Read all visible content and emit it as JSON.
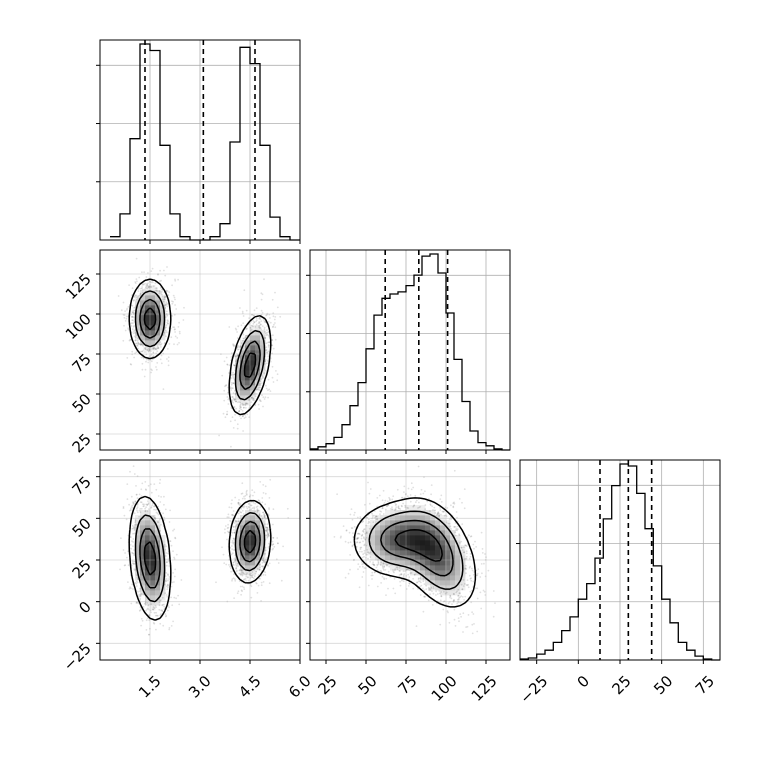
{
  "chart_data": {
    "type": "corner",
    "params": [
      {
        "range": [
          0,
          6
        ],
        "ticks": [
          1.5,
          3.0,
          4.5,
          6.0
        ],
        "tick_labels": [
          "1.5",
          "3.0",
          "4.5",
          "6.0"
        ]
      },
      {
        "range": [
          15,
          140
        ],
        "ticks": [
          25,
          50,
          75,
          100,
          125
        ],
        "tick_labels": [
          "25",
          "50",
          "75",
          "100",
          "125"
        ]
      },
      {
        "range": [
          -35,
          85
        ],
        "ticks": [
          -25,
          0,
          25,
          50,
          75
        ],
        "tick_labels": [
          "−25",
          "0",
          "25",
          "50",
          "75"
        ]
      }
    ],
    "histograms": [
      {
        "param": 0,
        "bin_edges": [
          0.3,
          0.6,
          0.9,
          1.2,
          1.5,
          1.8,
          2.1,
          2.4,
          2.7,
          3.0,
          3.3,
          3.6,
          3.9,
          4.2,
          4.5,
          4.8,
          5.1,
          5.4,
          5.7,
          6.0
        ],
        "counts": [
          1,
          8,
          31,
          60,
          58,
          29,
          8,
          1,
          0,
          0,
          1,
          5,
          30,
          59,
          54,
          29,
          7,
          1,
          0
        ],
        "quantiles": [
          1.35,
          3.1,
          4.65
        ]
      },
      {
        "param": 1,
        "bin_edges": [
          15,
          20,
          25,
          30,
          35,
          40,
          45,
          50,
          55,
          60,
          65,
          70,
          75,
          80,
          85,
          90,
          95,
          100,
          105,
          110,
          115,
          120,
          125,
          130,
          135,
          140
        ],
        "counts": [
          0.5,
          1.5,
          3,
          6,
          12,
          21,
          32,
          48,
          64,
          72,
          74,
          75,
          78,
          83,
          92,
          93,
          84,
          65,
          43,
          23,
          9,
          3.5,
          2,
          0.5,
          0
        ],
        "quantiles": [
          62,
          83,
          101
        ]
      },
      {
        "param": 2,
        "bin_edges": [
          -35,
          -30,
          -25,
          -20,
          -15,
          -10,
          -5,
          0,
          5,
          10,
          15,
          20,
          25,
          30,
          35,
          40,
          45,
          50,
          55,
          60,
          65,
          70,
          75,
          80,
          85
        ],
        "counts": [
          0.5,
          1,
          3,
          5,
          9,
          15,
          22,
          31,
          39,
          52,
          72,
          89,
          100,
          99,
          85,
          67,
          48,
          31,
          19,
          9,
          5,
          2,
          0.5,
          0
        ],
        "quantiles": [
          13,
          30,
          44
        ]
      }
    ],
    "scatter_2d": [
      {
        "x_param": 0,
        "y_param": 1,
        "clusters": [
          {
            "center": [
              1.5,
              97
            ],
            "sd": [
              0.3,
              12
            ],
            "rho": 0.0,
            "n": 1200
          },
          {
            "center": [
              4.5,
              68
            ],
            "sd": [
              0.3,
              15
            ],
            "rho": 0.45,
            "n": 1200
          }
        ]
      },
      {
        "x_param": 0,
        "y_param": 2,
        "clusters": [
          {
            "center": [
              1.5,
              26
            ],
            "sd": [
              0.3,
              18
            ],
            "rho": -0.25,
            "n": 1200
          },
          {
            "center": [
              4.5,
              36
            ],
            "sd": [
              0.3,
              12
            ],
            "rho": 0.1,
            "n": 1200
          }
        ]
      },
      {
        "x_param": 1,
        "y_param": 2,
        "clusters": [
          {
            "center": [
              70,
              37
            ],
            "sd": [
              14,
              11
            ],
            "rho": 0.0,
            "n": 1300
          },
          {
            "center": [
              95,
              28
            ],
            "sd": [
              12,
              16
            ],
            "rho": -0.4,
            "n": 1100
          }
        ]
      }
    ],
    "colors": {
      "line": "#000000",
      "points": "#000000",
      "grid": "#b0b0b0"
    }
  }
}
